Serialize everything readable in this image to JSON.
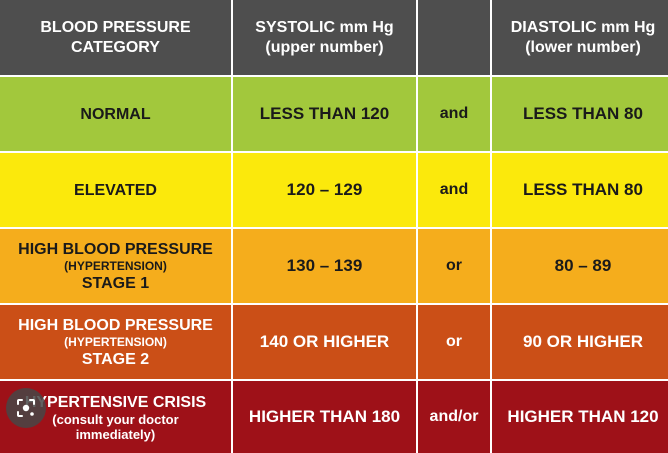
{
  "header": {
    "category": [
      "BLOOD PRESSURE",
      "CATEGORY"
    ],
    "systolic": [
      "SYSTOLIC mm Hg",
      "(upper number)"
    ],
    "conjunction": "",
    "diastolic": [
      "DIASTOLIC mm Hg",
      "(lower number)"
    ]
  },
  "rows": [
    {
      "category": "NORMAL",
      "subtitle": "",
      "stage": "",
      "systolic": "LESS THAN 120",
      "conjunction": "and",
      "diastolic": "LESS THAN 80",
      "color": "#a2c83c"
    },
    {
      "category": "ELEVATED",
      "subtitle": "",
      "stage": "",
      "systolic": "120 – 129",
      "conjunction": "and",
      "diastolic": "LESS THAN 80",
      "color": "#fbe90c"
    },
    {
      "category": "HIGH BLOOD PRESSURE",
      "subtitle": "(HYPERTENSION)",
      "stage": "STAGE 1",
      "systolic": "130 – 139",
      "conjunction": "or",
      "diastolic": "80 – 89",
      "color": "#f5ad1c"
    },
    {
      "category": "HIGH BLOOD PRESSURE",
      "subtitle": "(HYPERTENSION)",
      "stage": "STAGE 2",
      "systolic": "140 OR HIGHER",
      "conjunction": "or",
      "diastolic": "90 OR HIGHER",
      "color": "#cb4f17"
    },
    {
      "category": "HYPERTENSIVE CRISIS",
      "subtitle": "(consult your doctor",
      "stage": "immediately)",
      "systolic": "HIGHER THAN 180",
      "conjunction": "and/or",
      "diastolic": "HIGHER THAN 120",
      "color": "#9e1118"
    }
  ],
  "header_color": "#4e4e4e",
  "overlay": {
    "icon": "lens-search-icon"
  }
}
